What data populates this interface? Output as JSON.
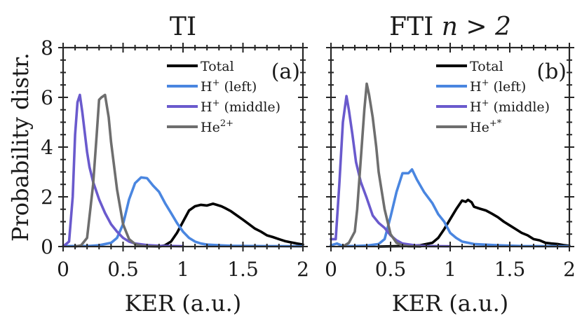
{
  "chart_data": [
    {
      "type": "line",
      "panel_label": "(a)",
      "title": "TI",
      "xlabel": "KER (a.u.)",
      "ylabel": "Probability distr.",
      "xlim": [
        0,
        2
      ],
      "ylim": [
        0,
        8
      ],
      "xticks": [
        0,
        0.5,
        1,
        1.5,
        2
      ],
      "xtick_labels": [
        "0",
        "0.5",
        "1",
        "1.5",
        "2"
      ],
      "yticks": [
        0,
        2,
        4,
        6,
        8
      ],
      "ytick_labels": [
        "0",
        "2",
        "4",
        "6",
        "8"
      ],
      "grid": false,
      "legend_position": "top-right",
      "series": [
        {
          "name": "Total",
          "label_base": "Total",
          "label_sup": "",
          "label_suffix": "",
          "color": "#000000",
          "x": [
            0.8,
            0.85,
            0.9,
            0.95,
            1.0,
            1.05,
            1.1,
            1.15,
            1.2,
            1.25,
            1.28,
            1.32,
            1.35,
            1.4,
            1.45,
            1.5,
            1.55,
            1.6,
            1.65,
            1.7,
            1.75,
            1.8,
            1.85,
            1.9,
            1.95,
            2.0
          ],
          "y": [
            0.0,
            0.05,
            0.2,
            0.55,
            1.0,
            1.45,
            1.62,
            1.68,
            1.65,
            1.72,
            1.68,
            1.62,
            1.55,
            1.42,
            1.25,
            1.08,
            0.9,
            0.72,
            0.6,
            0.45,
            0.38,
            0.3,
            0.22,
            0.17,
            0.12,
            0.08
          ]
        },
        {
          "name": "H+ (left)",
          "label_base": "H",
          "label_sup": "+",
          "label_suffix": "(left)",
          "color": "#4a86e0",
          "x": [
            0.0,
            0.2,
            0.3,
            0.4,
            0.45,
            0.5,
            0.55,
            0.6,
            0.65,
            0.7,
            0.75,
            0.8,
            0.85,
            0.9,
            0.95,
            1.0,
            1.05,
            1.1,
            1.15,
            1.2,
            1.3,
            1.4,
            1.6,
            2.0
          ],
          "y": [
            0.02,
            0.02,
            0.05,
            0.15,
            0.35,
            0.9,
            1.9,
            2.55,
            2.78,
            2.75,
            2.45,
            2.2,
            1.75,
            1.35,
            0.95,
            0.6,
            0.35,
            0.2,
            0.12,
            0.08,
            0.05,
            0.03,
            0.02,
            0.01
          ]
        },
        {
          "name": "H+ (middle)",
          "label_base": "H",
          "label_sup": "+",
          "label_suffix": "(middle)",
          "color": "#6a5acd",
          "x": [
            0.0,
            0.05,
            0.08,
            0.1,
            0.12,
            0.14,
            0.16,
            0.18,
            0.2,
            0.22,
            0.25,
            0.3,
            0.35,
            0.4,
            0.45,
            0.5,
            0.55,
            0.6,
            0.7,
            0.8,
            1.0
          ],
          "y": [
            0.0,
            0.2,
            2.0,
            4.5,
            5.8,
            6.1,
            5.4,
            4.6,
            3.8,
            3.2,
            2.6,
            1.9,
            1.35,
            0.9,
            0.6,
            0.35,
            0.2,
            0.12,
            0.06,
            0.03,
            0.01
          ]
        },
        {
          "name": "He2+",
          "label_base": "He",
          "label_sup": "2+",
          "label_suffix": "",
          "color": "#6e6e6e",
          "x": [
            0.1,
            0.15,
            0.2,
            0.25,
            0.28,
            0.3,
            0.32,
            0.35,
            0.38,
            0.4,
            0.45,
            0.5,
            0.55,
            0.6,
            0.65,
            0.7,
            0.8
          ],
          "y": [
            0.0,
            0.05,
            0.35,
            2.5,
            4.5,
            5.9,
            6.0,
            6.1,
            5.2,
            4.2,
            2.3,
            0.9,
            0.3,
            0.1,
            0.03,
            0.01,
            0.0
          ]
        }
      ]
    },
    {
      "type": "line",
      "panel_label": "(b)",
      "title": "FTI n > 2",
      "title_base": "FTI ",
      "title_math": "n > 2",
      "xlabel": "KER (a.u.)",
      "ylabel": "",
      "xlim": [
        0,
        2
      ],
      "ylim": [
        0,
        8
      ],
      "xticks": [
        0,
        0.5,
        1,
        1.5,
        2
      ],
      "xtick_labels": [
        "0",
        "0.5",
        "1",
        "1.5",
        "2"
      ],
      "yticks": [
        0,
        2,
        4,
        6,
        8
      ],
      "ytick_labels": [],
      "grid": false,
      "legend_position": "top-right",
      "series": [
        {
          "name": "Total",
          "label_base": "Total",
          "label_sup": "",
          "label_suffix": "",
          "color": "#000000",
          "x": [
            0.4,
            0.6,
            0.75,
            0.85,
            0.9,
            0.95,
            1.0,
            1.05,
            1.1,
            1.13,
            1.15,
            1.18,
            1.2,
            1.25,
            1.3,
            1.35,
            1.4,
            1.45,
            1.5,
            1.55,
            1.6,
            1.65,
            1.7,
            1.75,
            1.8,
            1.85,
            1.9,
            1.95,
            2.0
          ],
          "y": [
            0.0,
            0.02,
            0.05,
            0.15,
            0.35,
            0.7,
            1.1,
            1.5,
            1.85,
            1.8,
            1.88,
            1.78,
            1.6,
            1.52,
            1.45,
            1.32,
            1.18,
            1.0,
            0.85,
            0.7,
            0.55,
            0.45,
            0.3,
            0.25,
            0.15,
            0.12,
            0.1,
            0.06,
            0.03
          ]
        },
        {
          "name": "H+ (left)",
          "label_base": "H",
          "label_sup": "+",
          "label_suffix": "(left)",
          "color": "#4a86e0",
          "x": [
            0.0,
            0.05,
            0.1,
            0.2,
            0.3,
            0.4,
            0.45,
            0.5,
            0.55,
            0.6,
            0.65,
            0.68,
            0.72,
            0.78,
            0.85,
            0.9,
            0.95,
            1.0,
            1.05,
            1.1,
            1.2,
            1.4,
            1.6,
            2.0
          ],
          "y": [
            0.05,
            0.12,
            0.02,
            0.02,
            0.04,
            0.1,
            0.3,
            1.2,
            2.2,
            2.95,
            2.95,
            3.1,
            2.7,
            2.2,
            1.75,
            1.3,
            1.0,
            0.55,
            0.35,
            0.2,
            0.1,
            0.05,
            0.02,
            0.01
          ]
        },
        {
          "name": "H+ (middle)",
          "label_base": "H",
          "label_sup": "+",
          "label_suffix": "(middle)",
          "color": "#6a5acd",
          "x": [
            0.0,
            0.04,
            0.07,
            0.1,
            0.13,
            0.15,
            0.18,
            0.21,
            0.25,
            0.3,
            0.35,
            0.4,
            0.45,
            0.5,
            0.55,
            0.6,
            0.7,
            0.8,
            1.0
          ],
          "y": [
            0.3,
            0.3,
            2.5,
            5.0,
            6.05,
            5.5,
            4.5,
            3.4,
            2.6,
            1.95,
            1.25,
            0.95,
            0.75,
            0.45,
            0.25,
            0.12,
            0.05,
            0.02,
            0.01
          ]
        },
        {
          "name": "He+*",
          "label_base": "He",
          "label_sup": "+*",
          "label_suffix": "",
          "color": "#6e6e6e",
          "x": [
            0.1,
            0.15,
            0.2,
            0.22,
            0.25,
            0.28,
            0.3,
            0.32,
            0.35,
            0.38,
            0.4,
            0.45,
            0.5,
            0.55,
            0.6,
            0.65,
            0.75
          ],
          "y": [
            0.0,
            0.15,
            0.6,
            1.5,
            3.5,
            5.5,
            6.55,
            6.1,
            5.2,
            4.0,
            3.0,
            1.5,
            0.5,
            0.15,
            0.05,
            0.01,
            0.0
          ]
        }
      ]
    }
  ]
}
